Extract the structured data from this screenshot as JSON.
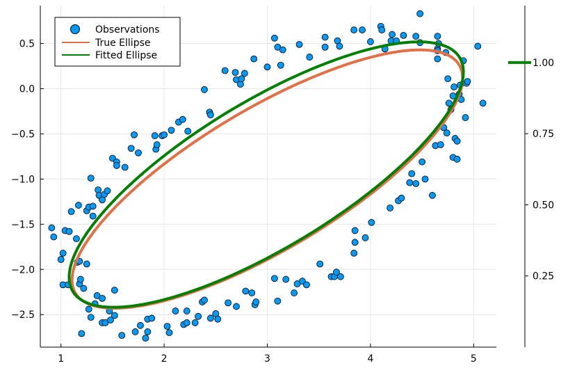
{
  "chart_data": {
    "type": "scatter",
    "title": "",
    "xlabel": "",
    "ylabel": "",
    "xlim": [
      0.8,
      5.22
    ],
    "ylim": [
      -2.86,
      0.92
    ],
    "xticks": [
      1,
      2,
      3,
      4,
      5
    ],
    "xtick_labels": [
      "1",
      "2",
      "3",
      "4",
      "5"
    ],
    "yticks": [
      -2.5,
      -2.0,
      -1.5,
      -1.0,
      -0.5,
      0.0,
      0.5
    ],
    "ytick_labels": [
      "−2.5",
      "−2.0",
      "−1.5",
      "−1.0",
      "−0.5",
      "0.0",
      "0.5"
    ],
    "grid": true,
    "legend_position": "top-left",
    "legend": [
      "Observations",
      "True Ellipse",
      "Fitted Ellipse"
    ],
    "colors": {
      "observations": "#009af9",
      "true_ellipse": "#e26f46",
      "fitted_ellipse": "#008000",
      "marker_edge": "#000000"
    },
    "true_ellipse": {
      "center": [
        3.0,
        -1.0
      ],
      "semi_major": 2.25,
      "semi_minor": 0.75,
      "angle_deg": 35
    },
    "fitted_ellipse": {
      "center": [
        2.99,
        -0.95
      ],
      "semi_major": 2.28,
      "semi_minor": 0.78,
      "angle_deg": 35.5
    },
    "colorbar": {
      "range": [
        0.0,
        1.2
      ],
      "ticks": [
        0.25,
        0.5,
        0.75,
        1.0
      ],
      "tick_labels": [
        "0.25",
        "0.50",
        "0.75",
        "1.00"
      ],
      "marker_value": 1.0,
      "marker_color": "#008000"
    },
    "observations": [
      [
        0.91,
        -1.54
      ],
      [
        0.93,
        -1.64
      ],
      [
        1.0,
        -1.89
      ],
      [
        1.02,
        -1.82
      ],
      [
        1.02,
        -2.17
      ],
      [
        1.04,
        -1.57
      ],
      [
        1.07,
        -2.17
      ],
      [
        1.08,
        -1.58
      ],
      [
        1.1,
        -1.36
      ],
      [
        1.15,
        -1.66
      ],
      [
        1.16,
        -1.92
      ],
      [
        1.17,
        -1.29
      ],
      [
        1.18,
        -1.91
      ],
      [
        1.18,
        -2.16
      ],
      [
        1.19,
        -2.11
      ],
      [
        1.2,
        -2.71
      ],
      [
        1.22,
        -2.21
      ],
      [
        1.25,
        -1.94
      ],
      [
        1.25,
        -1.35
      ],
      [
        1.27,
        -2.44
      ],
      [
        1.27,
        -1.31
      ],
      [
        1.29,
        -2.53
      ],
      [
        1.29,
        -0.99
      ],
      [
        1.31,
        -1.41
      ],
      [
        1.31,
        -1.3
      ],
      [
        1.33,
        -2.38
      ],
      [
        1.35,
        -2.29
      ],
      [
        1.36,
        -1.12
      ],
      [
        1.37,
        -1.18
      ],
      [
        1.4,
        -2.32
      ],
      [
        1.4,
        -2.59
      ],
      [
        1.4,
        -1.23
      ],
      [
        1.42,
        -1.17
      ],
      [
        1.43,
        -2.59
      ],
      [
        1.45,
        -1.13
      ],
      [
        1.47,
        -2.46
      ],
      [
        1.48,
        -2.56
      ],
      [
        1.5,
        -0.77
      ],
      [
        1.52,
        -2.23
      ],
      [
        1.52,
        -2.51
      ],
      [
        1.54,
        -0.81
      ],
      [
        1.54,
        -0.85
      ],
      [
        1.59,
        -2.73
      ],
      [
        1.62,
        -0.87
      ],
      [
        1.68,
        -0.66
      ],
      [
        1.71,
        -0.51
      ],
      [
        1.72,
        -2.69
      ],
      [
        1.75,
        -0.71
      ],
      [
        1.77,
        -2.62
      ],
      [
        1.82,
        -2.76
      ],
      [
        1.84,
        -2.69
      ],
      [
        1.84,
        -2.55
      ],
      [
        1.88,
        -2.54
      ],
      [
        1.91,
        -0.52
      ],
      [
        1.92,
        -0.67
      ],
      [
        1.93,
        -0.62
      ],
      [
        1.98,
        -0.52
      ],
      [
        2.0,
        -0.51
      ],
      [
        2.03,
        -2.63
      ],
      [
        2.05,
        -2.7
      ],
      [
        2.07,
        -0.46
      ],
      [
        2.11,
        -2.46
      ],
      [
        2.14,
        -0.37
      ],
      [
        2.18,
        -0.34
      ],
      [
        2.19,
        -2.61
      ],
      [
        2.22,
        -2.59
      ],
      [
        2.22,
        -2.46
      ],
      [
        2.23,
        -0.47
      ],
      [
        2.3,
        -2.59
      ],
      [
        2.33,
        -2.52
      ],
      [
        2.37,
        -2.36
      ],
      [
        2.39,
        -2.34
      ],
      [
        2.39,
        -0.01
      ],
      [
        2.44,
        -0.26
      ],
      [
        2.45,
        -2.54
      ],
      [
        2.45,
        -0.29
      ],
      [
        2.5,
        -2.49
      ],
      [
        2.52,
        -2.55
      ],
      [
        2.59,
        0.2
      ],
      [
        2.62,
        -2.37
      ],
      [
        2.69,
        0.18
      ],
      [
        2.7,
        -2.41
      ],
      [
        2.7,
        0.1
      ],
      [
        2.74,
        0.05
      ],
      [
        2.75,
        0.11
      ],
      [
        2.78,
        0.17
      ],
      [
        2.79,
        -2.24
      ],
      [
        2.85,
        -2.26
      ],
      [
        2.87,
        0.33
      ],
      [
        2.88,
        -2.39
      ],
      [
        2.89,
        -2.36
      ],
      [
        3.0,
        0.24
      ],
      [
        3.07,
        -2.1
      ],
      [
        3.07,
        0.56
      ],
      [
        3.1,
        0.46
      ],
      [
        3.1,
        -2.35
      ],
      [
        3.13,
        0.26
      ],
      [
        3.15,
        0.43
      ],
      [
        3.18,
        -2.11
      ],
      [
        3.26,
        -2.26
      ],
      [
        3.29,
        -2.16
      ],
      [
        3.31,
        0.49
      ],
      [
        3.34,
        -2.13
      ],
      [
        3.38,
        -2.17
      ],
      [
        3.41,
        0.35
      ],
      [
        3.51,
        -1.94
      ],
      [
        3.56,
        0.46
      ],
      [
        3.56,
        0.57
      ],
      [
        3.62,
        -2.08
      ],
      [
        3.65,
        -2.08
      ],
      [
        3.67,
        -2.03
      ],
      [
        3.68,
        0.53
      ],
      [
        3.7,
        0.47
      ],
      [
        3.71,
        -2.08
      ],
      [
        3.84,
        -1.82
      ],
      [
        3.84,
        0.65
      ],
      [
        3.85,
        -1.7
      ],
      [
        3.85,
        -1.57
      ],
      [
        3.92,
        0.65
      ],
      [
        3.95,
        -1.65
      ],
      [
        4.0,
        0.52
      ],
      [
        4.01,
        -1.48
      ],
      [
        4.1,
        0.69
      ],
      [
        4.11,
        0.65
      ],
      [
        4.14,
        0.44
      ],
      [
        4.19,
        -1.32
      ],
      [
        4.2,
        0.53
      ],
      [
        4.21,
        0.6
      ],
      [
        4.25,
        0.53
      ],
      [
        4.27,
        -1.24
      ],
      [
        4.3,
        -1.21
      ],
      [
        4.32,
        0.59
      ],
      [
        4.38,
        -1.04
      ],
      [
        4.4,
        -0.94
      ],
      [
        4.44,
        -1.05
      ],
      [
        4.44,
        0.58
      ],
      [
        4.48,
        0.83
      ],
      [
        4.48,
        0.51
      ],
      [
        4.5,
        -0.81
      ],
      [
        4.53,
        -1.0
      ],
      [
        4.6,
        -1.18
      ],
      [
        4.63,
        -0.63
      ],
      [
        4.65,
        0.58
      ],
      [
        4.65,
        0.44
      ],
      [
        4.65,
        0.42
      ],
      [
        4.65,
        0.33
      ],
      [
        4.66,
        0.5
      ],
      [
        4.68,
        -0.62
      ],
      [
        4.71,
        -0.43
      ],
      [
        4.73,
        0.4
      ],
      [
        4.74,
        -0.49
      ],
      [
        4.75,
        0.11
      ],
      [
        4.76,
        -0.16
      ],
      [
        4.78,
        -0.23
      ],
      [
        4.8,
        -0.76
      ],
      [
        4.8,
        -0.08
      ],
      [
        4.81,
        0.02
      ],
      [
        4.82,
        -0.55
      ],
      [
        4.84,
        -0.58
      ],
      [
        4.84,
        -0.78
      ],
      [
        4.86,
        -0.06
      ],
      [
        4.87,
        0.04
      ],
      [
        4.88,
        -0.12
      ],
      [
        4.9,
        0.31
      ],
      [
        4.92,
        -0.32
      ],
      [
        4.93,
        0.06
      ],
      [
        4.94,
        0.08
      ],
      [
        5.04,
        0.47
      ],
      [
        5.09,
        -0.16
      ]
    ]
  }
}
